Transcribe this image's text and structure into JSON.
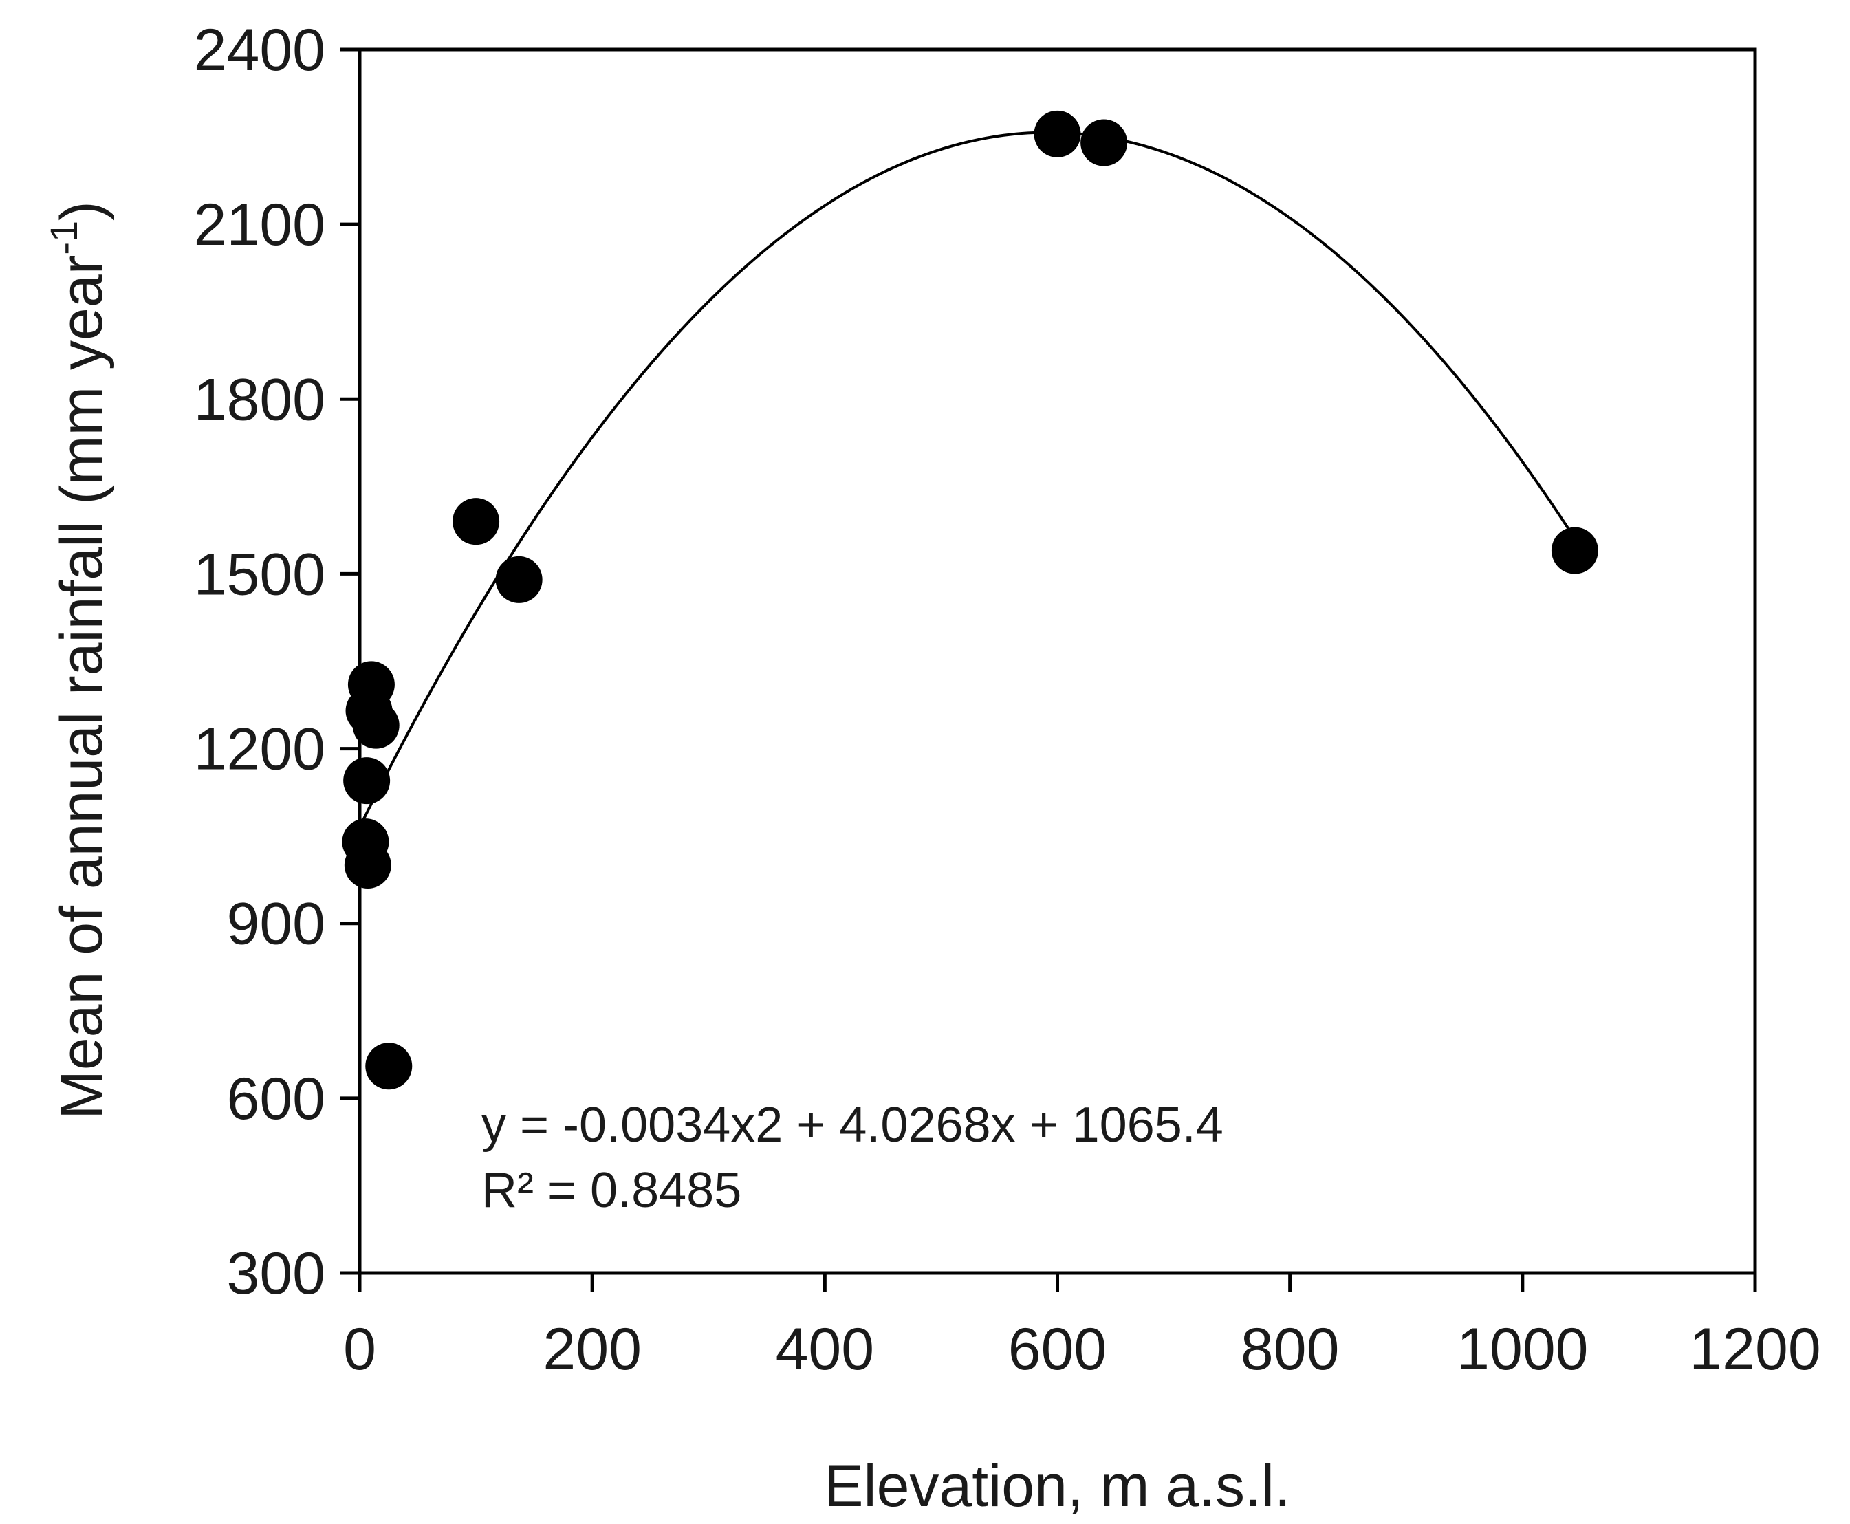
{
  "chart_data": {
    "type": "scatter",
    "title": "",
    "xlabel": "Elevation, m a.s.l.",
    "ylabel_main": "Mean of annual rainfall (mm year",
    "ylabel_sup": "-1",
    "ylabel_close": ")",
    "xlim": [
      0,
      1200
    ],
    "ylim": [
      300,
      2400
    ],
    "xticks": [
      0,
      200,
      400,
      600,
      800,
      1000,
      1200
    ],
    "yticks": [
      300,
      600,
      900,
      1200,
      1500,
      1800,
      2100,
      2400
    ],
    "grid": false,
    "legend": "none",
    "points": [
      {
        "x": 10,
        "y": 1310
      },
      {
        "x": 8,
        "y": 1265
      },
      {
        "x": 14,
        "y": 1240
      },
      {
        "x": 6,
        "y": 1145
      },
      {
        "x": 5,
        "y": 1040
      },
      {
        "x": 7,
        "y": 1000
      },
      {
        "x": 25,
        "y": 655
      },
      {
        "x": 100,
        "y": 1590
      },
      {
        "x": 137,
        "y": 1490
      },
      {
        "x": 600,
        "y": 2255
      },
      {
        "x": 640,
        "y": 2240
      },
      {
        "x": 1045,
        "y": 1540
      }
    ],
    "trendline": {
      "type": "polynomial",
      "degree": 2,
      "coefficients": {
        "a": -0.0034,
        "b": 4.0268,
        "c": 1065.4
      },
      "x_range": [
        0,
        1045
      ]
    },
    "annotation": {
      "equation": "y = -0.0034x2 + 4.0268x + 1065.4",
      "r_squared": "R² = 0.8485"
    },
    "colors": {
      "marker": "#000000",
      "line": "#000000",
      "axis": "#000000",
      "text": "#1a1a1a"
    }
  }
}
